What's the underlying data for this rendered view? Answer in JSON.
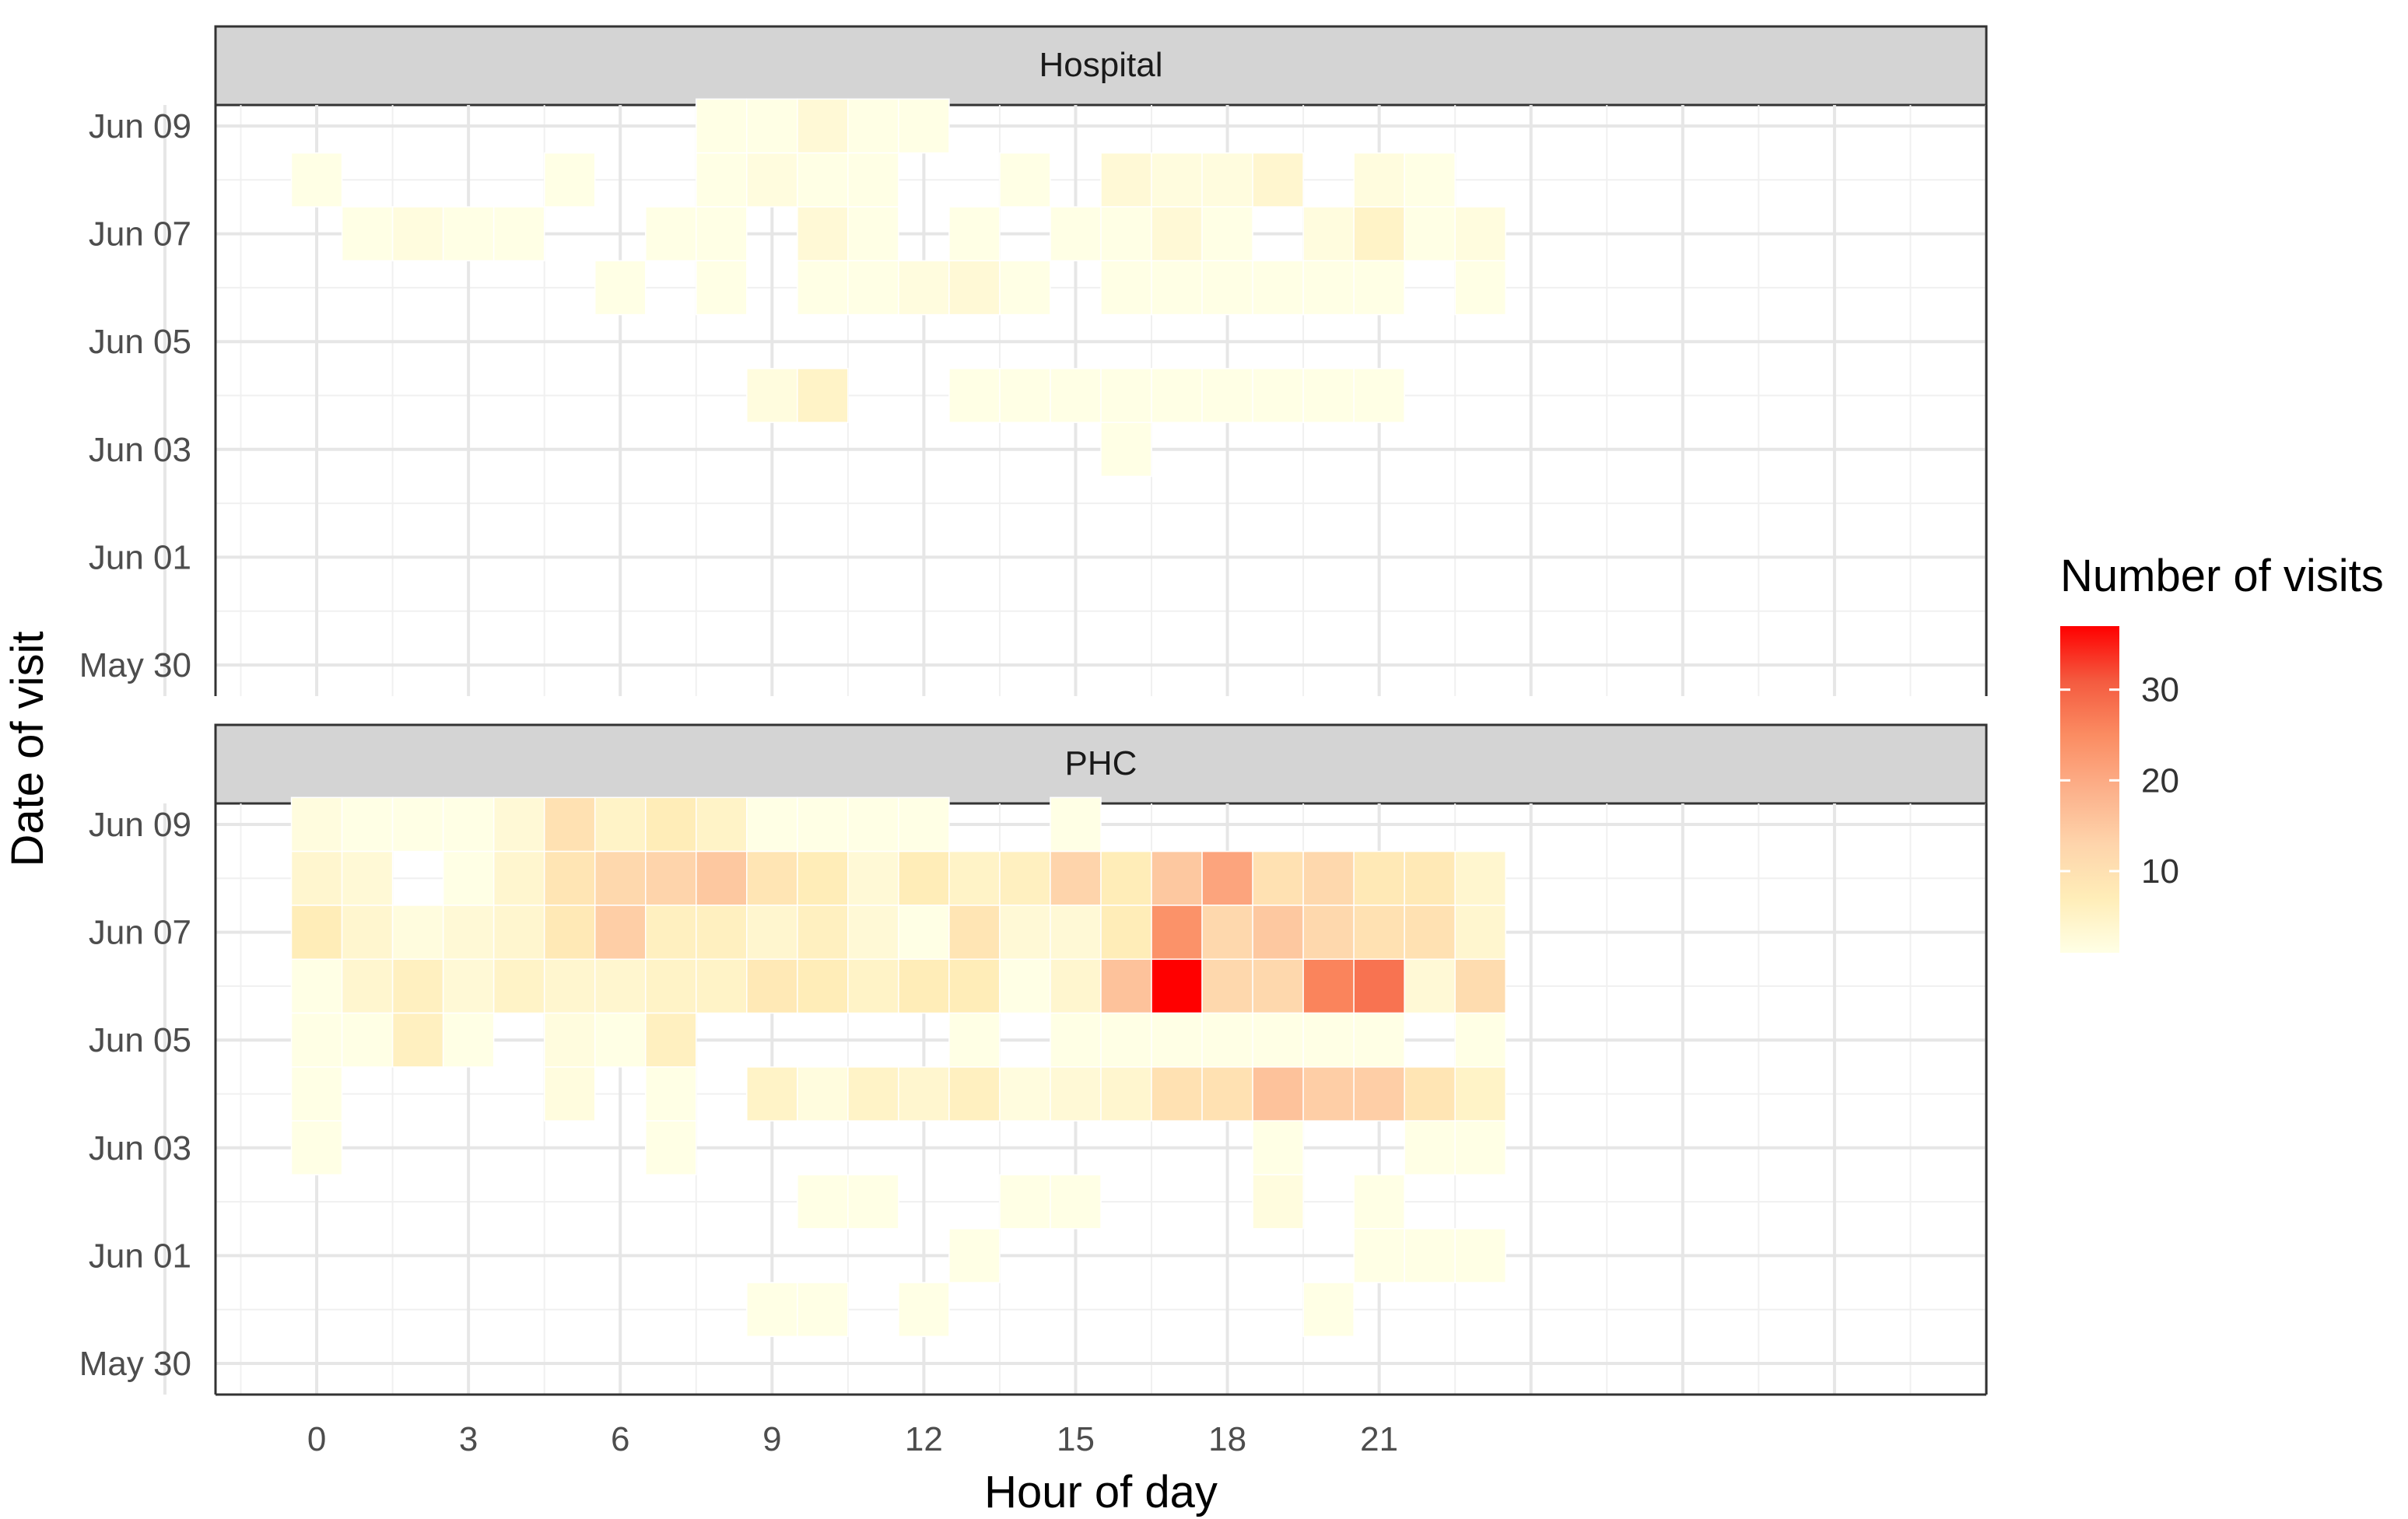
{
  "chart_data": {
    "type": "heatmap",
    "xlabel": "Hour of day",
    "ylabel": "Date of visit",
    "x_range": [
      -2,
      33
    ],
    "x_ticks": [
      0,
      3,
      6,
      9,
      12,
      15,
      18,
      21
    ],
    "y_dates": [
      "May 30",
      "May 31",
      "Jun 01",
      "Jun 02",
      "Jun 03",
      "Jun 04",
      "Jun 05",
      "Jun 06",
      "Jun 07",
      "Jun 08",
      "Jun 09"
    ],
    "y_tick_labels": [
      "May 30",
      "Jun 01",
      "Jun 03",
      "Jun 05",
      "Jun 07",
      "Jun 09"
    ],
    "legend": {
      "title": "Number of visits",
      "min": 1,
      "max": 37,
      "ticks": [
        10,
        20,
        30
      ],
      "colors": [
        "#FFFFE5",
        "#FFEDB8",
        "#FED4AB",
        "#FCB08A",
        "#FB8C62",
        "#F45A3F",
        "#FF0000"
      ]
    },
    "panels": [
      {
        "name": "Hospital",
        "rows": [
          {
            "date": "Jun 09",
            "values": [
              0,
              0,
              0,
              0,
              0,
              0,
              0,
              0,
              1,
              1,
              3,
              1,
              1,
              0,
              0,
              0,
              0,
              0,
              0,
              0,
              0,
              0,
              0,
              0
            ]
          },
          {
            "date": "Jun 08",
            "values": [
              1,
              0,
              0,
              0,
              0,
              1,
              0,
              0,
              1,
              2,
              1,
              1,
              0,
              0,
              1,
              0,
              3,
              2,
              2,
              4,
              0,
              2,
              1,
              0
            ]
          },
          {
            "date": "Jun 07",
            "values": [
              0,
              1,
              2,
              1,
              1,
              0,
              0,
              1,
              1,
              0,
              3,
              1,
              0,
              1,
              0,
              1,
              1,
              3,
              1,
              0,
              2,
              5,
              1,
              2
            ]
          },
          {
            "date": "Jun 06",
            "values": [
              0,
              0,
              0,
              0,
              0,
              0,
              1,
              0,
              1,
              0,
              1,
              1,
              2,
              3,
              1,
              0,
              1,
              1,
              1,
              1,
              1,
              1,
              0,
              1
            ]
          },
          {
            "date": "Jun 05",
            "values": [
              0,
              0,
              0,
              0,
              0,
              0,
              0,
              0,
              0,
              0,
              0,
              0,
              0,
              0,
              0,
              0,
              0,
              0,
              0,
              0,
              0,
              0,
              0,
              0
            ]
          },
          {
            "date": "Jun 04",
            "values": [
              0,
              0,
              0,
              0,
              0,
              0,
              0,
              0,
              0,
              2,
              5,
              0,
              0,
              1,
              1,
              1,
              1,
              1,
              1,
              1,
              1,
              1,
              0,
              0
            ]
          },
          {
            "date": "Jun 03",
            "values": [
              0,
              0,
              0,
              0,
              0,
              0,
              0,
              0,
              0,
              0,
              0,
              0,
              0,
              0,
              0,
              0,
              1,
              0,
              0,
              0,
              0,
              0,
              0,
              0
            ]
          }
        ]
      },
      {
        "name": "PHC",
        "rows": [
          {
            "date": "Jun 09",
            "values": [
              2,
              1,
              1,
              1,
              3,
              10,
              5,
              7,
              5,
              1,
              1,
              1,
              1,
              0,
              0,
              1,
              0,
              0,
              0,
              0,
              0,
              0,
              0,
              0
            ]
          },
          {
            "date": "Jun 08",
            "values": [
              4,
              3,
              0,
              1,
              4,
              9,
              12,
              13,
              15,
              9,
              7,
              3,
              7,
              5,
              6,
              13,
              7,
              15,
              21,
              10,
              12,
              8,
              8,
              4
            ]
          },
          {
            "date": "Jun 07",
            "values": [
              7,
              4,
              2,
              3,
              4,
              8,
              14,
              6,
              6,
              4,
              6,
              3,
              1,
              9,
              3,
              3,
              7,
              24,
              12,
              15,
              12,
              10,
              10,
              4
            ]
          },
          {
            "date": "Jun 06",
            "values": [
              1,
              4,
              6,
              3,
              5,
              4,
              4,
              5,
              5,
              8,
              7,
              5,
              7,
              7,
              1,
              4,
              16,
              37,
              12,
              12,
              26,
              28,
              3,
              11
            ]
          },
          {
            "date": "Jun 05",
            "values": [
              1,
              1,
              6,
              1,
              0,
              2,
              1,
              6,
              0,
              0,
              0,
              0,
              0,
              1,
              0,
              1,
              1,
              1,
              1,
              1,
              1,
              1,
              0,
              1
            ]
          },
          {
            "date": "Jun 04",
            "values": [
              1,
              0,
              0,
              0,
              0,
              2,
              0,
              1,
              0,
              5,
              2,
              5,
              4,
              6,
              2,
              3,
              4,
              10,
              10,
              16,
              14,
              14,
              9,
              5
            ]
          },
          {
            "date": "Jun 03",
            "values": [
              1,
              0,
              0,
              0,
              0,
              0,
              0,
              1,
              0,
              0,
              0,
              0,
              0,
              0,
              0,
              0,
              0,
              0,
              0,
              1,
              0,
              0,
              1,
              1
            ]
          },
          {
            "date": "Jun 02",
            "values": [
              0,
              0,
              0,
              0,
              0,
              0,
              0,
              0,
              0,
              0,
              1,
              1,
              0,
              0,
              1,
              1,
              0,
              0,
              0,
              2,
              0,
              1,
              0,
              0
            ]
          },
          {
            "date": "Jun 01",
            "values": [
              0,
              0,
              0,
              0,
              0,
              0,
              0,
              0,
              0,
              0,
              0,
              0,
              0,
              1,
              0,
              0,
              0,
              0,
              0,
              0,
              0,
              1,
              1,
              1
            ]
          },
          {
            "date": "May 31",
            "values": [
              0,
              0,
              0,
              0,
              0,
              0,
              0,
              0,
              0,
              1,
              1,
              0,
              1,
              0,
              0,
              0,
              0,
              0,
              0,
              0,
              1,
              0,
              0,
              0
            ]
          }
        ]
      }
    ]
  }
}
